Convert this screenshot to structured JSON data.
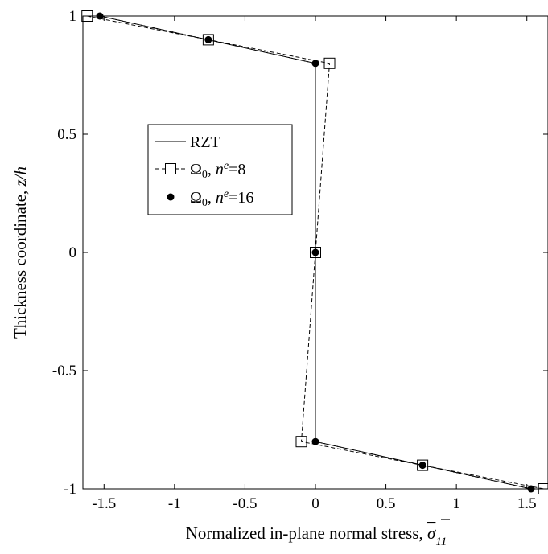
{
  "chart_data": {
    "type": "line",
    "title": "",
    "xlabel": "Normalized in-plane normal stress, ",
    "xlabel_symbol": "σ",
    "xlabel_subscript": "11",
    "ylabel": "Thickness coordinate, ",
    "ylabel_symbol": "z/h",
    "xlim": [
      -1.65,
      1.65
    ],
    "ylim": [
      -1,
      1
    ],
    "xticks": [
      -1.5,
      -1,
      -0.5,
      0,
      0.5,
      1,
      1.5
    ],
    "xtick_labels": [
      "-1.5",
      "-1",
      "-0.5",
      "0",
      "0.5",
      "1",
      "1.5"
    ],
    "yticks": [
      -1,
      -0.5,
      0,
      0.5,
      1
    ],
    "ytick_labels": [
      "-1",
      "-0.5",
      "0",
      "0.5",
      "1"
    ],
    "grid": false,
    "legend_position": "center-left",
    "series": [
      {
        "name": "RZT",
        "style": "solid",
        "marker": "none",
        "color": "#000000",
        "points": [
          [
            -1.53,
            1.0
          ],
          [
            0.0,
            0.8
          ],
          [
            0.0,
            -0.8
          ],
          [
            1.53,
            -1.0
          ]
        ]
      },
      {
        "name": "Ω0, ne=8",
        "style": "dashed",
        "marker": "square-open",
        "color": "#000000",
        "points": [
          [
            -1.62,
            1.0
          ],
          [
            -0.76,
            0.9
          ],
          [
            0.1,
            0.8
          ],
          [
            0.0,
            0.0
          ],
          [
            -0.1,
            -0.8
          ],
          [
            0.76,
            -0.9
          ],
          [
            1.62,
            -1.0
          ]
        ]
      },
      {
        "name": "Ω0, ne=16",
        "style": "dotted",
        "marker": "circle-filled",
        "color": "#000000",
        "points": [
          [
            -1.53,
            1.0
          ],
          [
            -0.76,
            0.9
          ],
          [
            0.0,
            0.8
          ],
          [
            0.0,
            0.0
          ],
          [
            0.0,
            -0.8
          ],
          [
            0.76,
            -0.9
          ],
          [
            1.53,
            -1.0
          ]
        ]
      }
    ],
    "legend": [
      {
        "label_main": "RZT",
        "sub": "",
        "sup_var": "",
        "eq": ""
      },
      {
        "label_main": "Ω",
        "sub": "0",
        "sup_var": "e",
        "eq": "=8"
      },
      {
        "label_main": "Ω",
        "sub": "0",
        "sup_var": "e",
        "eq": "=16"
      }
    ]
  }
}
